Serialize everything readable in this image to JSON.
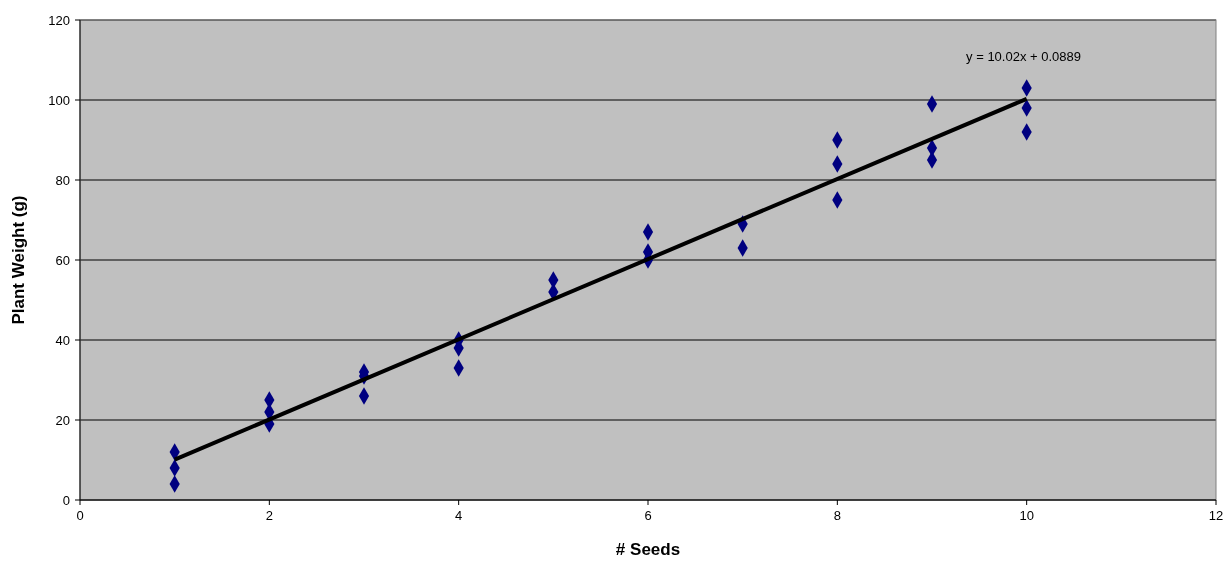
{
  "chart_data": {
    "type": "scatter",
    "xlabel": "# Seeds",
    "ylabel": "Plant Weight (g)",
    "annotations": [
      "y = 10.02x + 0.0889"
    ],
    "xlim": [
      0,
      12
    ],
    "xticks": [
      0,
      2,
      4,
      6,
      8,
      10,
      12
    ],
    "ylim": [
      0,
      120
    ],
    "yticks": [
      0,
      20,
      40,
      60,
      80,
      100,
      120
    ],
    "grid": "y",
    "marker": "diamond",
    "series": [
      {
        "color": "#000080",
        "x": [
          1,
          1,
          1,
          2,
          2,
          2,
          3,
          3,
          3,
          4,
          4,
          4,
          5,
          5,
          6,
          6,
          6,
          7,
          7,
          8,
          8,
          8,
          9,
          9,
          9,
          10,
          10,
          10
        ],
        "values": [
          12,
          8,
          4,
          25,
          22,
          19,
          32,
          31,
          26,
          40,
          38,
          33,
          55,
          52,
          67,
          62,
          60,
          69,
          63,
          90,
          84,
          75,
          99,
          88,
          85,
          103,
          98,
          92
        ]
      },
      {
        "type": "line",
        "color": "#000000",
        "x": [
          1,
          10
        ],
        "values": [
          10.1,
          100.3
        ],
        "line_style": "solid",
        "marker": "none"
      }
    ]
  }
}
